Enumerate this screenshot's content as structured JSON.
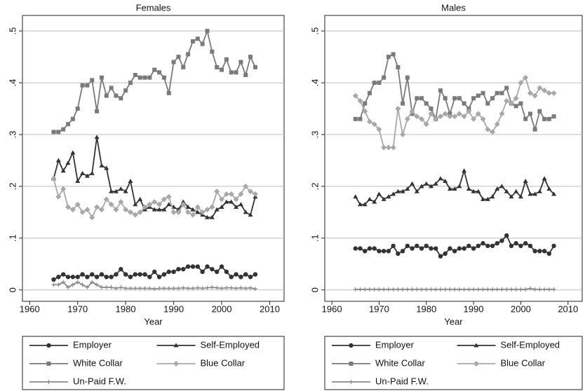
{
  "chart_data": [
    {
      "type": "line",
      "title": "Females",
      "xlabel": "Year",
      "x": [
        1965,
        1966,
        1967,
        1968,
        1969,
        1970,
        1971,
        1972,
        1973,
        1974,
        1975,
        1976,
        1977,
        1978,
        1979,
        1980,
        1981,
        1982,
        1983,
        1984,
        1985,
        1986,
        1987,
        1988,
        1989,
        1990,
        1991,
        1992,
        1993,
        1994,
        1995,
        1996,
        1997,
        1998,
        1999,
        2000,
        2001,
        2002,
        2003,
        2004,
        2005,
        2006,
        2007
      ],
      "xlim": [
        1958.5,
        2013
      ],
      "xticks": [
        1960,
        1970,
        1980,
        1990,
        2000,
        2010
      ],
      "ylim": [
        -0.022,
        0.53
      ],
      "yticks": [
        0,
        {
          "value": 0.1,
          "label": ".1"
        },
        {
          "value": 0.2,
          "label": ".2"
        },
        {
          "value": 0.3,
          "label": ".3"
        },
        {
          "value": 0.4,
          "label": ".4"
        },
        {
          "value": 0.5,
          "label": ".5"
        }
      ],
      "grid": true,
      "series": [
        {
          "name": "Employer",
          "color": "#333333",
          "marker": "circle",
          "values": [
            0.02,
            0.025,
            0.03,
            0.025,
            0.025,
            0.025,
            0.03,
            0.025,
            0.03,
            0.025,
            0.03,
            0.025,
            0.025,
            0.03,
            0.04,
            0.03,
            0.025,
            0.03,
            0.03,
            0.03,
            0.025,
            0.035,
            0.025,
            0.03,
            0.035,
            0.035,
            0.04,
            0.04,
            0.045,
            0.045,
            0.045,
            0.035,
            0.045,
            0.04,
            0.035,
            0.045,
            0.035,
            0.025,
            0.03,
            0.025,
            0.03,
            0.025,
            0.03
          ]
        },
        {
          "name": "Self-Employed",
          "color": "#333333",
          "marker": "triangle",
          "values": [
            0.215,
            0.25,
            0.23,
            0.245,
            0.265,
            0.21,
            0.225,
            0.22,
            0.225,
            0.295,
            0.24,
            0.235,
            0.19,
            0.19,
            0.195,
            0.19,
            0.21,
            0.165,
            0.175,
            0.155,
            0.16,
            0.155,
            0.155,
            0.155,
            0.165,
            0.16,
            0.155,
            0.17,
            0.16,
            0.155,
            0.15,
            0.145,
            0.14,
            0.14,
            0.155,
            0.16,
            0.17,
            0.17,
            0.16,
            0.165,
            0.15,
            0.145,
            0.18
          ]
        },
        {
          "name": "White Collar",
          "color": "#7a7a7a",
          "marker": "square",
          "values": [
            0.305,
            0.305,
            0.31,
            0.32,
            0.33,
            0.35,
            0.395,
            0.395,
            0.405,
            0.345,
            0.41,
            0.375,
            0.39,
            0.375,
            0.37,
            0.385,
            0.4,
            0.415,
            0.41,
            0.41,
            0.41,
            0.425,
            0.42,
            0.41,
            0.38,
            0.44,
            0.45,
            0.43,
            0.455,
            0.48,
            0.485,
            0.475,
            0.5,
            0.46,
            0.43,
            0.425,
            0.445,
            0.42,
            0.42,
            0.44,
            0.415,
            0.45,
            0.43
          ]
        },
        {
          "name": "Blue Collar",
          "color": "#a8a8a8",
          "marker": "diamond",
          "values": [
            0.215,
            0.18,
            0.195,
            0.16,
            0.155,
            0.165,
            0.15,
            0.155,
            0.14,
            0.16,
            0.155,
            0.175,
            0.165,
            0.155,
            0.17,
            0.155,
            0.15,
            0.145,
            0.15,
            0.16,
            0.165,
            0.17,
            0.165,
            0.175,
            0.18,
            0.15,
            0.15,
            0.165,
            0.15,
            0.145,
            0.16,
            0.15,
            0.155,
            0.16,
            0.19,
            0.175,
            0.185,
            0.185,
            0.175,
            0.185,
            0.2,
            0.19,
            0.185
          ]
        },
        {
          "name": "Un-Paid F.W.",
          "color": "#8a8a8a",
          "marker": "plus",
          "values": [
            0.01,
            0.01,
            0.015,
            0.005,
            0.01,
            0.015,
            0.01,
            0.005,
            0.015,
            0.01,
            0.005,
            0.005,
            0.005,
            0.003,
            0.005,
            0.003,
            0.003,
            0.003,
            0.003,
            0.003,
            0.003,
            0.002,
            0.003,
            0.003,
            0.003,
            0.003,
            0.003,
            0.004,
            0.003,
            0.003,
            0.004,
            0.003,
            0.004,
            0.005,
            0.004,
            0.003,
            0.004,
            0.004,
            0.003,
            0.004,
            0.003,
            0.004,
            0.002
          ]
        }
      ]
    },
    {
      "type": "line",
      "title": "Males",
      "xlabel": "Year",
      "x": [
        1965,
        1966,
        1967,
        1968,
        1969,
        1970,
        1971,
        1972,
        1973,
        1974,
        1975,
        1976,
        1977,
        1978,
        1979,
        1980,
        1981,
        1982,
        1983,
        1984,
        1985,
        1986,
        1987,
        1988,
        1989,
        1990,
        1991,
        1992,
        1993,
        1994,
        1995,
        1996,
        1997,
        1998,
        1999,
        2000,
        2001,
        2002,
        2003,
        2004,
        2005,
        2006,
        2007
      ],
      "xlim": [
        1958.5,
        2013
      ],
      "xticks": [
        1960,
        1970,
        1980,
        1990,
        2000,
        2010
      ],
      "ylim": [
        -0.022,
        0.53
      ],
      "yticks": [
        0,
        {
          "value": 0.1,
          "label": ".1"
        },
        {
          "value": 0.2,
          "label": ".2"
        },
        {
          "value": 0.3,
          "label": ".3"
        },
        {
          "value": 0.4,
          "label": ".4"
        },
        {
          "value": 0.5,
          "label": ".5"
        }
      ],
      "grid": true,
      "series": [
        {
          "name": "Employer",
          "color": "#333333",
          "marker": "circle",
          "values": [
            0.08,
            0.08,
            0.075,
            0.08,
            0.08,
            0.075,
            0.075,
            0.075,
            0.085,
            0.07,
            0.075,
            0.085,
            0.08,
            0.085,
            0.08,
            0.085,
            0.08,
            0.08,
            0.065,
            0.07,
            0.08,
            0.075,
            0.08,
            0.08,
            0.085,
            0.08,
            0.085,
            0.09,
            0.085,
            0.085,
            0.09,
            0.095,
            0.105,
            0.085,
            0.09,
            0.085,
            0.09,
            0.085,
            0.075,
            0.075,
            0.075,
            0.07,
            0.085
          ]
        },
        {
          "name": "Self-Employed",
          "color": "#333333",
          "marker": "triangle",
          "values": [
            0.18,
            0.165,
            0.165,
            0.175,
            0.17,
            0.185,
            0.175,
            0.18,
            0.185,
            0.19,
            0.19,
            0.195,
            0.205,
            0.19,
            0.2,
            0.205,
            0.2,
            0.205,
            0.215,
            0.21,
            0.195,
            0.195,
            0.2,
            0.23,
            0.195,
            0.19,
            0.19,
            0.175,
            0.175,
            0.18,
            0.195,
            0.2,
            0.19,
            0.18,
            0.19,
            0.18,
            0.21,
            0.185,
            0.185,
            0.19,
            0.215,
            0.195,
            0.185
          ]
        },
        {
          "name": "White Collar",
          "color": "#7a7a7a",
          "marker": "square",
          "values": [
            0.33,
            0.33,
            0.36,
            0.38,
            0.4,
            0.4,
            0.41,
            0.45,
            0.455,
            0.43,
            0.36,
            0.41,
            0.34,
            0.37,
            0.37,
            0.36,
            0.35,
            0.33,
            0.385,
            0.37,
            0.34,
            0.37,
            0.37,
            0.36,
            0.35,
            0.37,
            0.375,
            0.38,
            0.36,
            0.37,
            0.38,
            0.38,
            0.39,
            0.36,
            0.355,
            0.36,
            0.33,
            0.34,
            0.31,
            0.345,
            0.33,
            0.33,
            0.335
          ]
        },
        {
          "name": "Blue Collar",
          "color": "#a8a8a8",
          "marker": "diamond",
          "values": [
            0.375,
            0.365,
            0.345,
            0.325,
            0.32,
            0.31,
            0.275,
            0.275,
            0.275,
            0.35,
            0.3,
            0.33,
            0.345,
            0.335,
            0.33,
            0.32,
            0.34,
            0.33,
            0.335,
            0.34,
            0.335,
            0.335,
            0.34,
            0.335,
            0.345,
            0.33,
            0.34,
            0.33,
            0.31,
            0.305,
            0.32,
            0.34,
            0.365,
            0.36,
            0.37,
            0.4,
            0.41,
            0.38,
            0.375,
            0.39,
            0.385,
            0.38,
            0.38
          ]
        },
        {
          "name": "Un-Paid F.W.",
          "color": "#8a8a8a",
          "marker": "plus",
          "values": [
            0.001,
            0.001,
            0.001,
            0.001,
            0.001,
            0.001,
            0.001,
            0.001,
            0.001,
            0.001,
            0.001,
            0.001,
            0.001,
            0.001,
            0.001,
            0.001,
            0.001,
            0.001,
            0.001,
            0.001,
            0.001,
            0.001,
            0.001,
            0.001,
            0.001,
            0.001,
            0.001,
            0.001,
            0.001,
            0.001,
            0.001,
            0.001,
            0.001,
            0.001,
            0.001,
            0.001,
            0.001,
            0.003,
            0.001,
            0.001,
            0.001,
            0.001,
            0.001
          ]
        }
      ]
    }
  ]
}
